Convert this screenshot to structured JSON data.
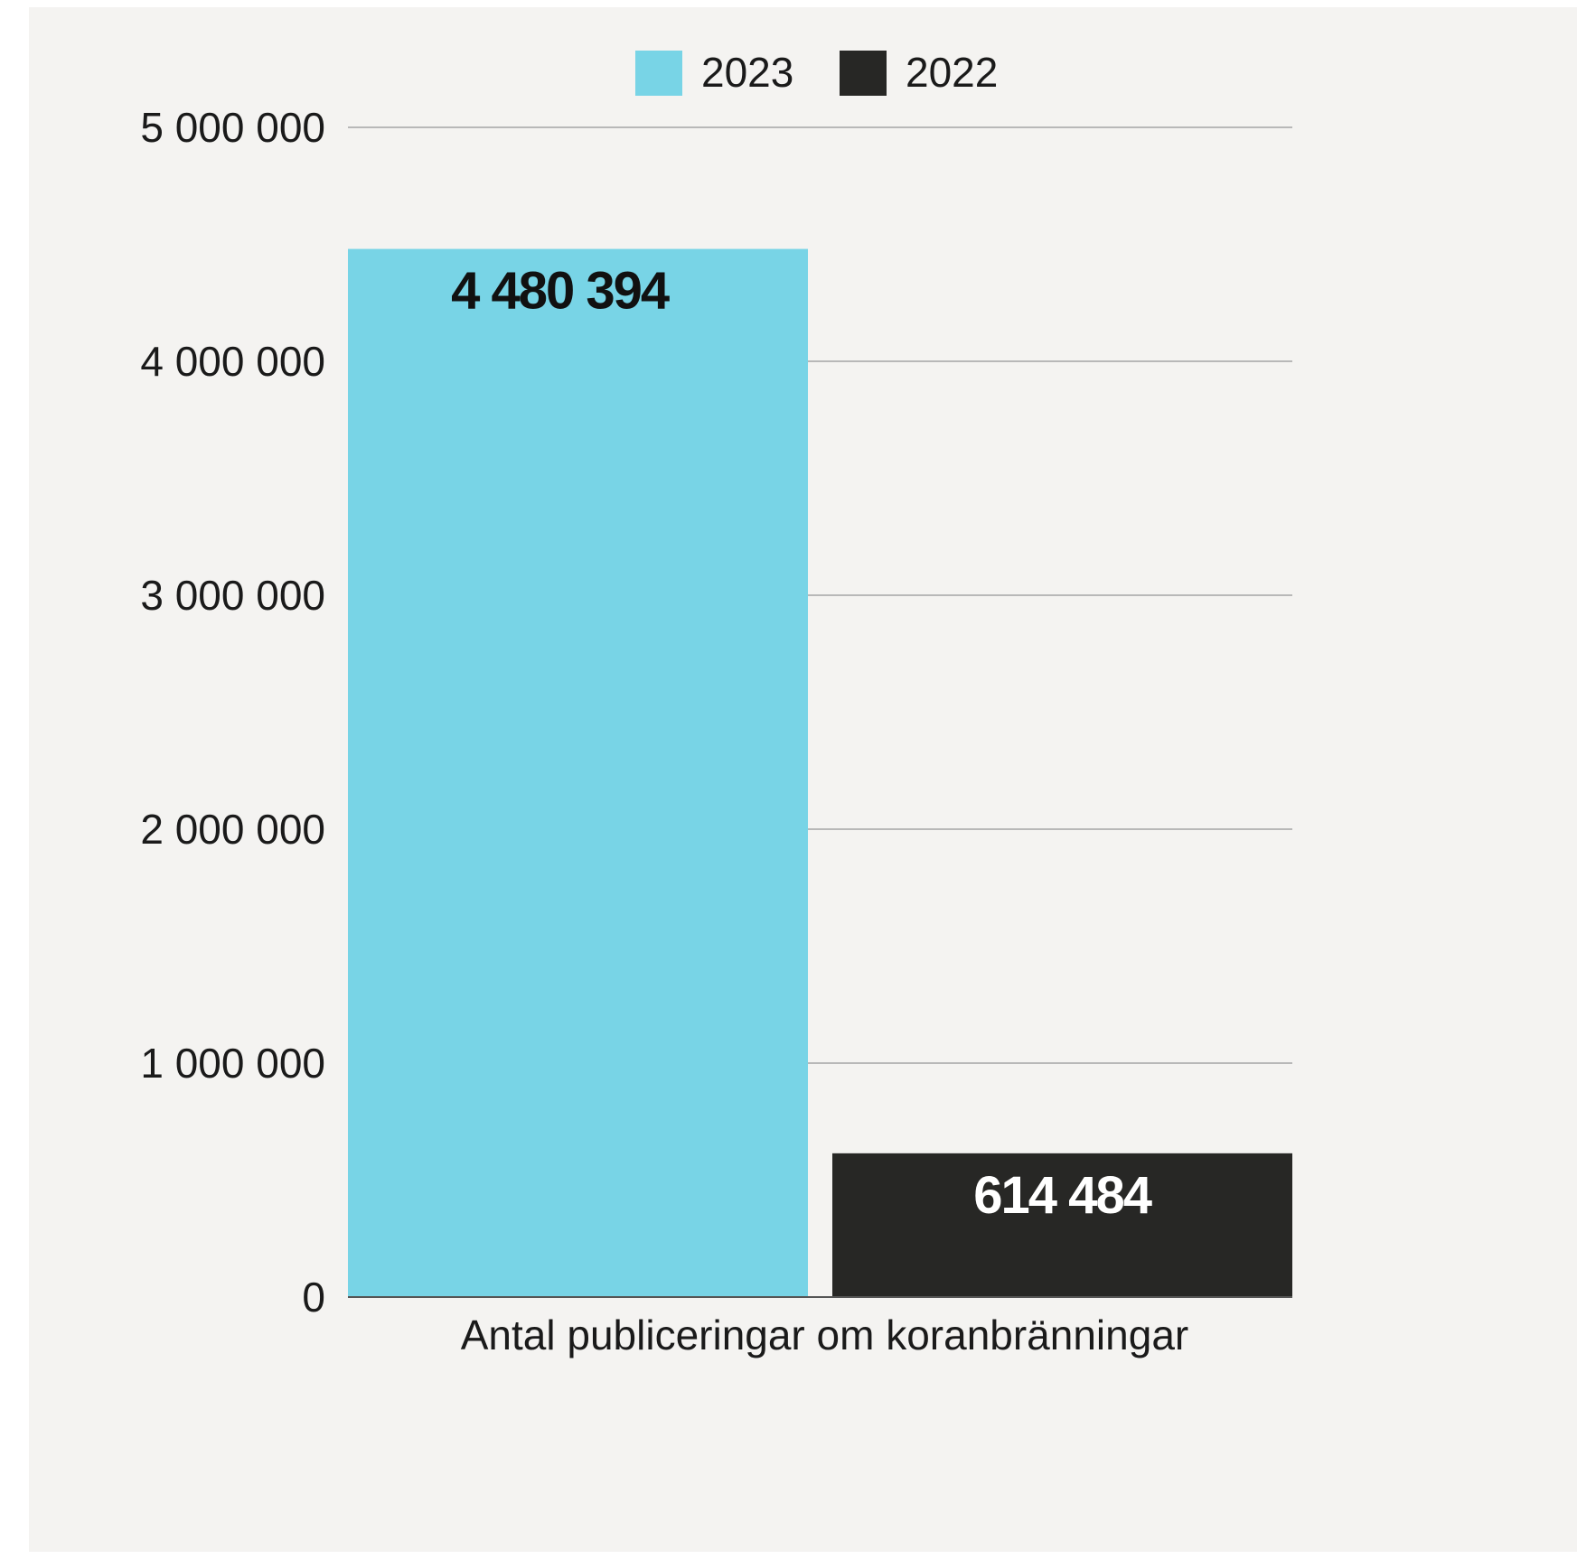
{
  "chart_data": {
    "type": "bar",
    "categories": [
      "Antal publiceringar om koranbränningar"
    ],
    "series": [
      {
        "name": "2023",
        "values": [
          4480394
        ],
        "value_label": "4 480 394",
        "color": "#78d4e6",
        "label_color": "#111111"
      },
      {
        "name": "2022",
        "values": [
          614484
        ],
        "value_label": "614 484",
        "color": "#272725",
        "label_color": "#ffffff"
      }
    ],
    "ylim": [
      0,
      5000000
    ],
    "yticks": [
      0,
      1000000,
      2000000,
      3000000,
      4000000,
      5000000
    ],
    "ytick_labels": [
      "0",
      "1 000 000",
      "2 000 000",
      "3 000 000",
      "4 000 000",
      "5 000 000"
    ],
    "grid": true,
    "legend_position": "top-center",
    "title": "",
    "xlabel": "",
    "ylabel": ""
  },
  "colors": {
    "background": "#f4f3f1",
    "grid": "#b8b8b8",
    "axis": "#555555"
  }
}
